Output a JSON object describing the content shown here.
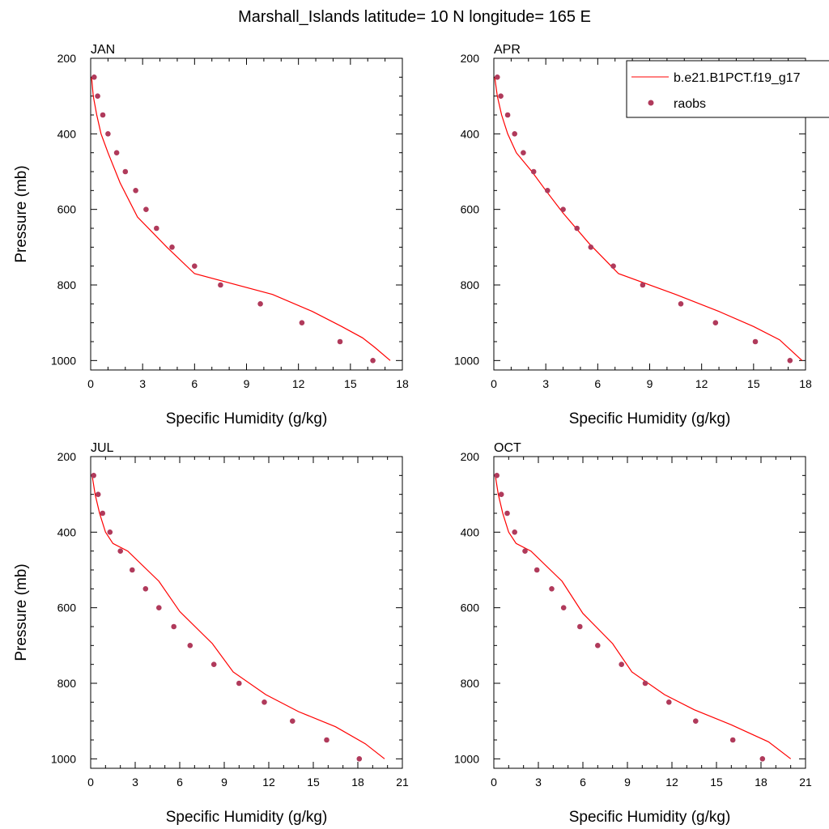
{
  "title": "Marshall_Islands  latitude= 10 N longitude= 165 E",
  "legend": {
    "placement": "top-right of APR panel",
    "model_label": "b.e21.B1PCT.f19_g17",
    "obs_label": "raobs"
  },
  "colors": {
    "model": "#ff0000",
    "obs": "#b03a5b",
    "frame": "#000000"
  },
  "chart_data": [
    {
      "type": "line",
      "panel_title": "JAN",
      "xlabel": "Specific Humidity (g/kg)",
      "ylabel": "Pressure (mb)",
      "xlim": [
        0,
        18
      ],
      "ylim": [
        1000,
        200
      ],
      "y_reversed": true,
      "x_ticks": [
        "0",
        "3",
        "6",
        "9",
        "12",
        "15",
        "18"
      ],
      "y_ticks": [
        "200",
        "400",
        "600",
        "800",
        "1000"
      ],
      "series": [
        {
          "name": "b.e21.B1PCT.f19_g17",
          "kind": "line",
          "x": [
            0.05,
            0.15,
            0.35,
            0.6,
            1.0,
            1.7,
            2.7,
            4.4,
            6.0,
            10.5,
            12.8,
            14.5,
            15.7,
            16.4,
            17.3
          ],
          "y": [
            250,
            300,
            350,
            400,
            450,
            530,
            620,
            700,
            770,
            825,
            870,
            910,
            940,
            965,
            1000
          ]
        },
        {
          "name": "raobs",
          "kind": "scatter",
          "x": [
            0.2,
            0.4,
            0.7,
            1.0,
            1.5,
            2.0,
            2.6,
            3.2,
            3.8,
            4.7,
            6.0,
            7.5,
            9.8,
            12.2,
            14.4,
            16.3
          ],
          "y": [
            250,
            300,
            350,
            400,
            450,
            500,
            550,
            600,
            650,
            700,
            750,
            800,
            850,
            900,
            950,
            1000
          ]
        }
      ]
    },
    {
      "type": "line",
      "panel_title": "APR",
      "xlabel": "Specific Humidity (g/kg)",
      "ylabel": "",
      "xlim": [
        0,
        18
      ],
      "ylim": [
        1000,
        200
      ],
      "y_reversed": true,
      "x_ticks": [
        "0",
        "3",
        "6",
        "9",
        "12",
        "15",
        "18"
      ],
      "y_ticks": [
        "200",
        "400",
        "600",
        "800",
        "1000"
      ],
      "series": [
        {
          "name": "b.e21.B1PCT.f19_g17",
          "kind": "line",
          "x": [
            0.05,
            0.2,
            0.45,
            0.8,
            1.3,
            2.2,
            3.0,
            4.0,
            5.5,
            7.2,
            10.5,
            13.0,
            15.0,
            16.5,
            17.8
          ],
          "y": [
            250,
            300,
            350,
            400,
            450,
            500,
            550,
            610,
            690,
            770,
            825,
            870,
            910,
            945,
            1000
          ]
        },
        {
          "name": "raobs",
          "kind": "scatter",
          "x": [
            0.2,
            0.4,
            0.8,
            1.2,
            1.7,
            2.3,
            3.1,
            4.0,
            4.8,
            5.6,
            6.9,
            8.6,
            10.8,
            12.8,
            15.1,
            17.1
          ],
          "y": [
            250,
            300,
            350,
            400,
            450,
            500,
            550,
            600,
            650,
            700,
            750,
            800,
            850,
            900,
            950,
            1000
          ]
        }
      ]
    },
    {
      "type": "line",
      "panel_title": "JUL",
      "xlabel": "Specific Humidity (g/kg)",
      "ylabel": "Pressure (mb)",
      "xlim": [
        0,
        21
      ],
      "ylim": [
        1000,
        200
      ],
      "y_reversed": true,
      "x_ticks": [
        "0",
        "3",
        "6",
        "9",
        "12",
        "15",
        "18",
        "21"
      ],
      "y_ticks": [
        "200",
        "400",
        "600",
        "800",
        "1000"
      ],
      "series": [
        {
          "name": "b.e21.B1PCT.f19_g17",
          "kind": "line",
          "x": [
            0.1,
            0.3,
            0.6,
            1.0,
            1.5,
            2.5,
            4.6,
            6.0,
            8.2,
            9.6,
            11.8,
            14.0,
            16.5,
            18.5,
            19.8
          ],
          "y": [
            250,
            300,
            350,
            400,
            430,
            450,
            530,
            610,
            695,
            770,
            830,
            875,
            915,
            960,
            1000
          ]
        },
        {
          "name": "raobs",
          "kind": "scatter",
          "x": [
            0.2,
            0.5,
            0.8,
            1.3,
            2.0,
            2.8,
            3.7,
            4.6,
            5.6,
            6.7,
            8.3,
            10.0,
            11.7,
            13.6,
            15.9,
            18.1
          ],
          "y": [
            250,
            300,
            350,
            400,
            450,
            500,
            550,
            600,
            650,
            700,
            750,
            800,
            850,
            900,
            950,
            1000
          ]
        }
      ]
    },
    {
      "type": "line",
      "panel_title": "OCT",
      "xlabel": "Specific Humidity (g/kg)",
      "ylabel": "",
      "xlim": [
        0,
        21
      ],
      "ylim": [
        1000,
        200
      ],
      "y_reversed": true,
      "x_ticks": [
        "0",
        "3",
        "6",
        "9",
        "12",
        "15",
        "18",
        "21"
      ],
      "y_ticks": [
        "200",
        "400",
        "600",
        "800",
        "1000"
      ],
      "series": [
        {
          "name": "b.e21.B1PCT.f19_g17",
          "kind": "line",
          "x": [
            0.1,
            0.3,
            0.6,
            1.0,
            1.5,
            2.5,
            4.6,
            6.0,
            8.0,
            9.3,
            11.5,
            13.5,
            16.0,
            18.5,
            20.0
          ],
          "y": [
            250,
            300,
            350,
            400,
            430,
            450,
            530,
            615,
            695,
            770,
            830,
            870,
            910,
            955,
            1000
          ]
        },
        {
          "name": "raobs",
          "kind": "scatter",
          "x": [
            0.2,
            0.5,
            0.9,
            1.4,
            2.1,
            2.9,
            3.9,
            4.7,
            5.8,
            7.0,
            8.6,
            10.2,
            11.8,
            13.6,
            16.1,
            18.1
          ],
          "y": [
            250,
            300,
            350,
            400,
            450,
            500,
            550,
            600,
            650,
            700,
            750,
            800,
            850,
            900,
            950,
            1000
          ]
        }
      ]
    }
  ]
}
